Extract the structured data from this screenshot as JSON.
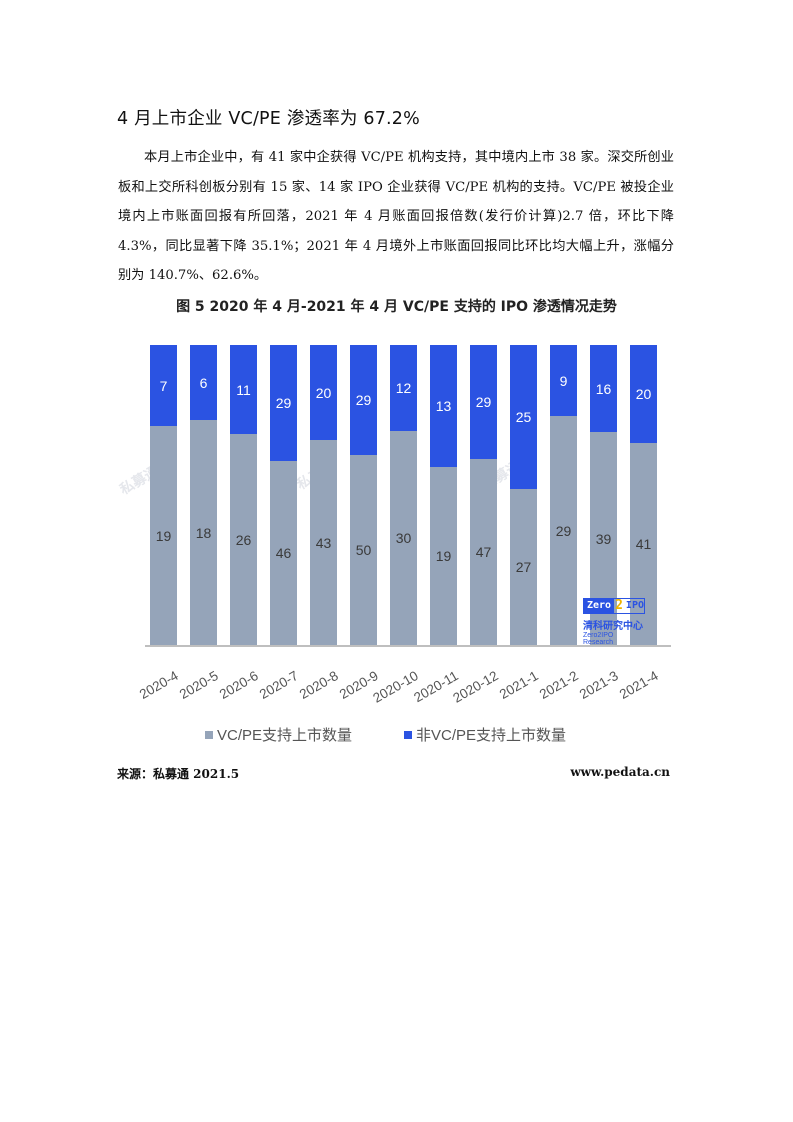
{
  "heading": "4 月上市企业 VC/PE 渗透率为 67.2%",
  "paragraph": "本月上市企业中，有 41 家中企获得 VC/PE 机构支持，其中境内上市 38 家。深交所创业板和上交所科创板分别有 15 家、14 家 IPO 企业获得 VC/PE 机构的支持。VC/PE 被投企业境内上市账面回报有所回落，2021 年 4 月账面回报倍数(发行价计算)2.7 倍，环比下降 4.3%，同比显著下降 35.1%；2021 年 4 月境外上市账面回报同比环比均大幅上升，涨幅分别为 140.7%、62.6%。",
  "chart_data": {
    "type": "bar",
    "stacked": true,
    "normalized_percent": true,
    "title": "图 5 2020 年 4 月-2021 年 4 月 VC/PE 支持的 IPO 渗透情况走势",
    "categories": [
      "2020-4",
      "2020-5",
      "2020-6",
      "2020-7",
      "2020-8",
      "2020-9",
      "2020-10",
      "2020-11",
      "2020-12",
      "2021-1",
      "2021-2",
      "2021-3",
      "2021-4"
    ],
    "series": [
      {
        "name": "VC/PE支持上市数量",
        "color": "#95a4b9",
        "values": [
          19,
          18,
          26,
          46,
          43,
          50,
          30,
          19,
          47,
          27,
          29,
          39,
          41
        ]
      },
      {
        "name": "非VC/PE支持上市数量",
        "color": "#2b53e2",
        "values": [
          7,
          6,
          11,
          29,
          20,
          29,
          12,
          13,
          29,
          25,
          9,
          16,
          20
        ]
      }
    ],
    "xlabel": "",
    "ylabel": "",
    "grid": false,
    "legend_position": "bottom"
  },
  "logo": {
    "brand_left": "Zero",
    "brand_mid": "2",
    "brand_right": "IPO",
    "cn": "清科研究中心",
    "en": "Zero2IPO Research"
  },
  "watermark": "私募通",
  "footer": {
    "source": "来源：私募通 2021.5",
    "site": "www.pedata.cn"
  }
}
